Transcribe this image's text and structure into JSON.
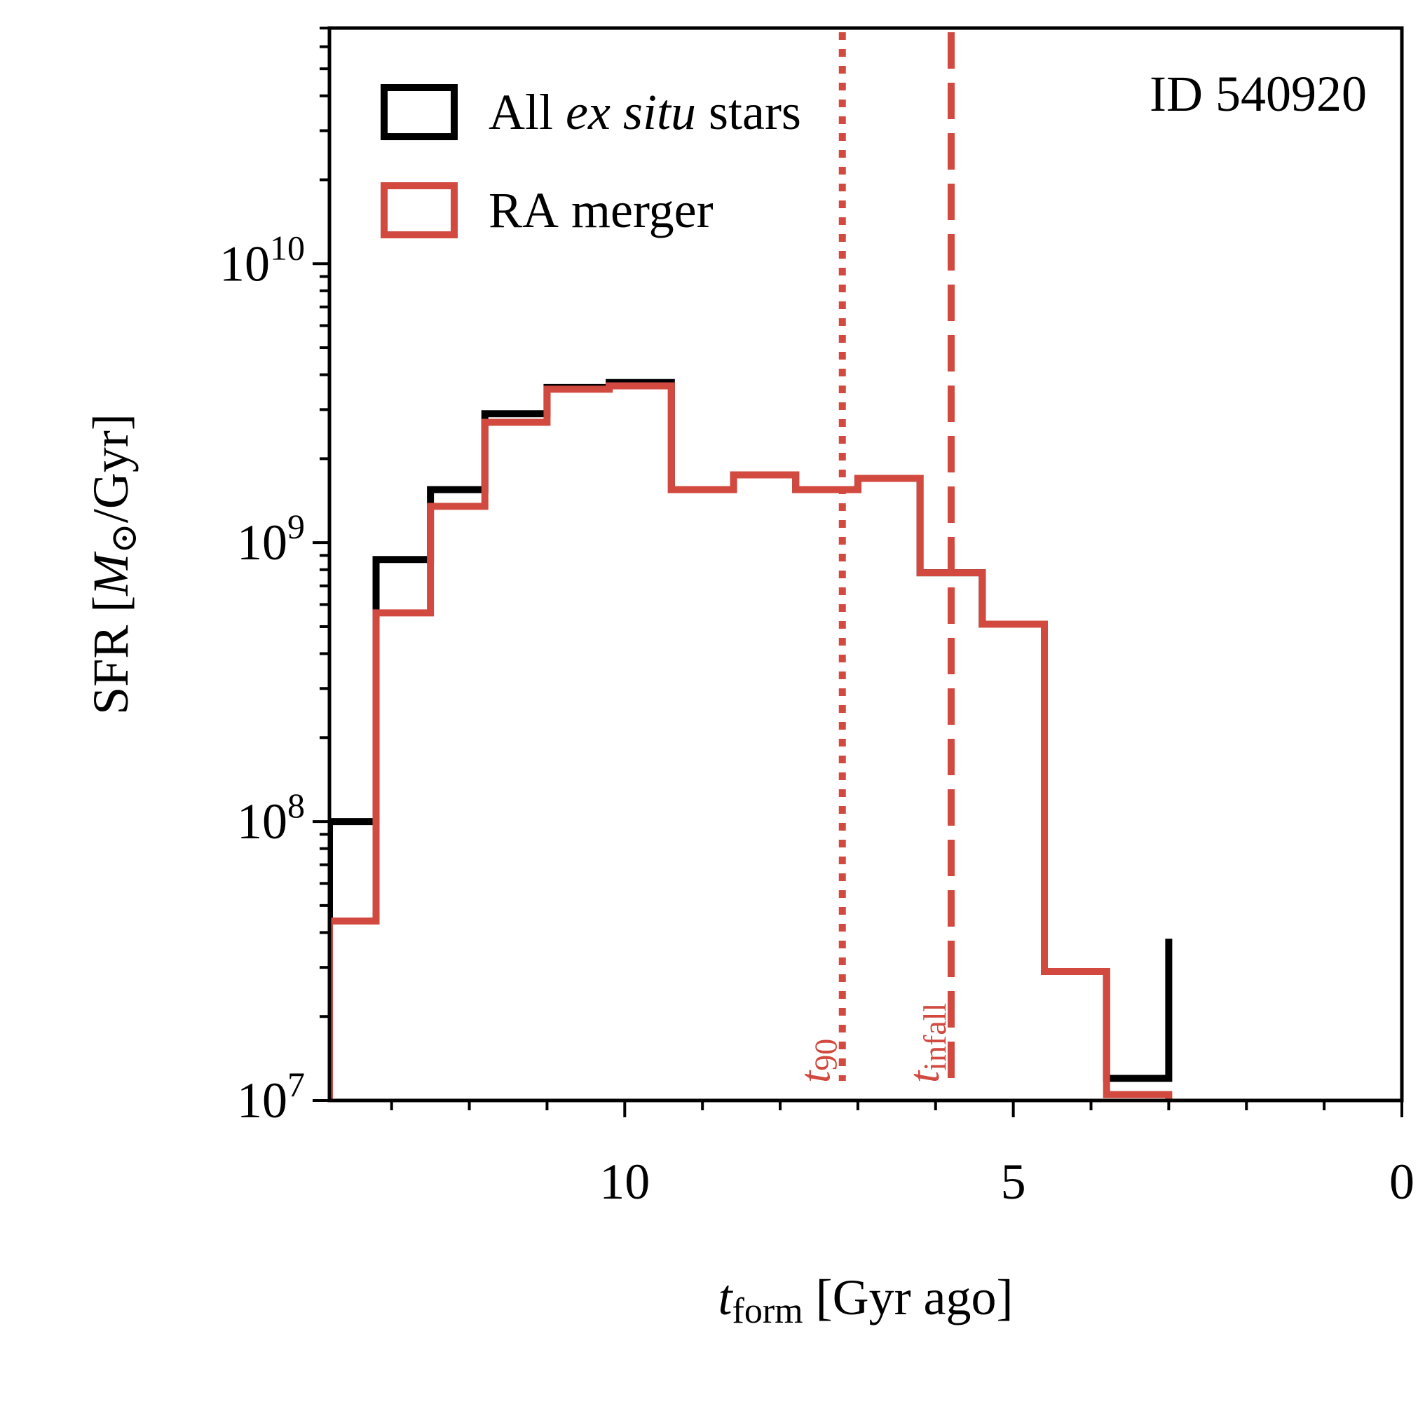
{
  "chart_data": {
    "type": "step-histogram",
    "panel_label": "ID 540920",
    "xlabel": {
      "symbol": "t",
      "subscript": "form",
      "unit": "[Gyr ago]"
    },
    "ylabel": {
      "prefix": "SFR [",
      "symbol": "M",
      "sun": "⊙",
      "suffix": "/Gyr]"
    },
    "x_axis": {
      "range": [
        13.8,
        0
      ],
      "reversed": true,
      "scale": "linear",
      "major_ticks": [
        10,
        5,
        0
      ],
      "tick_labels": [
        "10",
        "5",
        "0"
      ],
      "minor_step": 1
    },
    "y_axis": {
      "range": [
        10000000.0,
        70000000000.0
      ],
      "scale": "log",
      "major_ticks": [
        10000000.0,
        100000000.0,
        1000000000.0,
        10000000000.0
      ],
      "tick_labels": [
        {
          "base": "10",
          "exp": "7"
        },
        {
          "base": "10",
          "exp": "8"
        },
        {
          "base": "10",
          "exp": "9"
        },
        {
          "base": "10",
          "exp": "10"
        }
      ]
    },
    "bin_edges": [
      13.8,
      13.2,
      12.5,
      11.8,
      11.0,
      10.2,
      9.4,
      8.6,
      7.8,
      7.0,
      6.2,
      5.4,
      4.6,
      3.8,
      3.0
    ],
    "legend": {
      "position": "top-left",
      "entries": [
        {
          "label_parts": [
            {
              "text": "All ",
              "italic": false
            },
            {
              "text": "ex situ",
              "italic": true
            },
            {
              "text": " stars",
              "italic": false
            }
          ],
          "color": "#000000"
        },
        {
          "label_parts": [
            {
              "text": "RA merger",
              "italic": false
            }
          ],
          "color": "#d1493f"
        }
      ]
    },
    "series": [
      {
        "name": "All ex situ stars",
        "color": "#000000",
        "values": [
          100000000.0,
          870000000.0,
          1550000000.0,
          2900000000.0,
          3600000000.0,
          3750000000.0,
          1550000000.0,
          1750000000.0,
          1550000000.0,
          1700000000.0,
          780000000.0,
          510000000.0,
          29000000.0,
          12000000.0,
          38000000.0
        ]
      },
      {
        "name": "RA merger",
        "color": "#d1493f",
        "values": [
          44000000.0,
          560000000.0,
          1350000000.0,
          2700000000.0,
          3550000000.0,
          3650000000.0,
          1550000000.0,
          1750000000.0,
          1550000000.0,
          1700000000.0,
          780000000.0,
          510000000.0,
          29000000.0,
          10500000.0,
          null
        ]
      }
    ],
    "vlines": [
      {
        "name": "t90",
        "x": 7.2,
        "style": "dotted",
        "color": "#d1493f",
        "label_symbol": "t",
        "label_subscript": "90"
      },
      {
        "name": "t_infall",
        "x": 5.8,
        "style": "dashed",
        "color": "#d1493f",
        "label_symbol": "t",
        "label_subscript": "infall"
      }
    ]
  }
}
